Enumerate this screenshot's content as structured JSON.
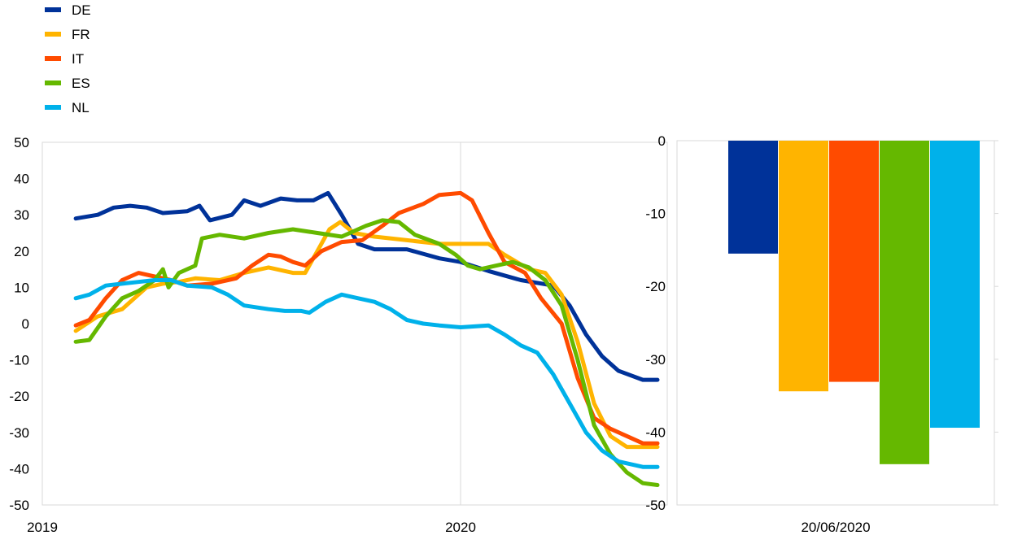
{
  "chart_data": [
    {
      "type": "line",
      "title": "",
      "xlabel": "",
      "ylabel": "",
      "x_unit": "months since Jan 2019",
      "x_ticks": [
        {
          "label": "2019",
          "x": 0
        },
        {
          "label": "2020",
          "x": 12
        }
      ],
      "xlim": [
        0,
        18.4
      ],
      "ylim": [
        -50,
        50
      ],
      "y_ticks": [
        50,
        40,
        30,
        20,
        10,
        0,
        -10,
        -20,
        -30,
        -40,
        -50
      ],
      "grid": "vertical at year start",
      "legend": {
        "placement": "top-left",
        "entries": [
          "DE",
          "FR",
          "IT",
          "ES",
          "NL"
        ]
      },
      "series": [
        {
          "name": "DE",
          "color": "#003299",
          "points": [
            [
              0.96,
              29
            ],
            [
              1.59,
              30
            ],
            [
              2.05,
              32
            ],
            [
              2.52,
              32.5
            ],
            [
              2.99,
              32
            ],
            [
              3.46,
              30.5
            ],
            [
              4.16,
              31
            ],
            [
              4.51,
              32.5
            ],
            [
              4.81,
              28.5
            ],
            [
              5.44,
              30
            ],
            [
              5.79,
              34
            ],
            [
              6.26,
              32.5
            ],
            [
              6.84,
              34.5
            ],
            [
              7.31,
              34
            ],
            [
              7.78,
              34
            ],
            [
              8.2,
              36
            ],
            [
              8.59,
              30
            ],
            [
              9.06,
              22
            ],
            [
              9.53,
              20.5
            ],
            [
              10.46,
              20.5
            ],
            [
              11.39,
              18
            ],
            [
              12.0,
              17
            ],
            [
              12.8,
              14.5
            ],
            [
              13.73,
              12
            ],
            [
              14.66,
              10.5
            ],
            [
              15.13,
              5
            ],
            [
              15.6,
              -3
            ],
            [
              16.06,
              -9
            ],
            [
              16.53,
              -13
            ],
            [
              17.23,
              -15.5
            ],
            [
              17.65,
              -15.5
            ]
          ]
        },
        {
          "name": "FR",
          "color": "#FFB400",
          "points": [
            [
              0.96,
              -2
            ],
            [
              1.59,
              2
            ],
            [
              2.29,
              4
            ],
            [
              2.99,
              10
            ],
            [
              3.46,
              11
            ],
            [
              3.92,
              11.5
            ],
            [
              4.39,
              12.5
            ],
            [
              5.09,
              12
            ],
            [
              5.79,
              14
            ],
            [
              6.49,
              15.5
            ],
            [
              7.19,
              14
            ],
            [
              7.54,
              14
            ],
            [
              7.89,
              20
            ],
            [
              8.24,
              26
            ],
            [
              8.55,
              28
            ],
            [
              8.94,
              25
            ],
            [
              9.53,
              24
            ],
            [
              10.46,
              23
            ],
            [
              11.39,
              22
            ],
            [
              12.0,
              22
            ],
            [
              12.8,
              22
            ],
            [
              13.26,
              19
            ],
            [
              13.96,
              15
            ],
            [
              14.43,
              14
            ],
            [
              14.9,
              8
            ],
            [
              15.36,
              -5
            ],
            [
              15.83,
              -22
            ],
            [
              16.3,
              -31
            ],
            [
              16.77,
              -34
            ],
            [
              17.23,
              -34
            ],
            [
              17.65,
              -34
            ]
          ]
        },
        {
          "name": "IT",
          "color": "#FF4B00",
          "points": [
            [
              0.96,
              -0.5
            ],
            [
              1.35,
              1
            ],
            [
              1.82,
              7
            ],
            [
              2.29,
              12
            ],
            [
              2.76,
              14
            ],
            [
              3.22,
              13
            ],
            [
              3.69,
              12
            ],
            [
              4.16,
              10.5
            ],
            [
              4.86,
              11
            ],
            [
              5.56,
              12.5
            ],
            [
              6.02,
              16
            ],
            [
              6.49,
              19
            ],
            [
              6.84,
              18.5
            ],
            [
              7.19,
              17
            ],
            [
              7.54,
              16
            ],
            [
              8.01,
              20
            ],
            [
              8.59,
              22.5
            ],
            [
              9.18,
              23
            ],
            [
              9.76,
              27
            ],
            [
              10.23,
              30.5
            ],
            [
              10.93,
              33
            ],
            [
              11.39,
              35.5
            ],
            [
              12.0,
              36
            ],
            [
              12.33,
              34
            ],
            [
              12.8,
              25
            ],
            [
              13.26,
              17
            ],
            [
              13.85,
              14
            ],
            [
              14.31,
              7
            ],
            [
              14.9,
              0
            ],
            [
              15.36,
              -15
            ],
            [
              15.83,
              -26
            ],
            [
              16.3,
              -29
            ],
            [
              16.77,
              -31
            ],
            [
              17.23,
              -33
            ],
            [
              17.65,
              -33
            ]
          ]
        },
        {
          "name": "ES",
          "color": "#65B800",
          "points": [
            [
              0.96,
              -5
            ],
            [
              1.35,
              -4.5
            ],
            [
              1.82,
              2
            ],
            [
              2.29,
              7
            ],
            [
              2.76,
              9
            ],
            [
              3.22,
              12
            ],
            [
              3.46,
              15
            ],
            [
              3.62,
              10
            ],
            [
              3.92,
              14
            ],
            [
              4.39,
              16
            ],
            [
              4.58,
              23.5
            ],
            [
              5.09,
              24.5
            ],
            [
              5.79,
              23.5
            ],
            [
              6.49,
              25
            ],
            [
              7.19,
              26
            ],
            [
              7.89,
              25
            ],
            [
              8.59,
              24
            ],
            [
              9.29,
              27
            ],
            [
              9.76,
              28.5
            ],
            [
              10.23,
              28
            ],
            [
              10.69,
              24.5
            ],
            [
              11.39,
              22
            ],
            [
              11.86,
              19
            ],
            [
              12.21,
              16
            ],
            [
              12.56,
              15
            ],
            [
              13.03,
              16
            ],
            [
              13.5,
              17
            ],
            [
              13.96,
              15.5
            ],
            [
              14.43,
              12
            ],
            [
              14.9,
              5
            ],
            [
              15.36,
              -10
            ],
            [
              15.83,
              -28
            ],
            [
              16.3,
              -36
            ],
            [
              16.77,
              -41
            ],
            [
              17.23,
              -44
            ],
            [
              17.65,
              -44.5
            ]
          ]
        },
        {
          "name": "NL",
          "color": "#00B1EA",
          "points": [
            [
              0.96,
              7
            ],
            [
              1.35,
              8
            ],
            [
              1.82,
              10.5
            ],
            [
              2.29,
              11
            ],
            [
              2.76,
              11.5
            ],
            [
              3.22,
              12
            ],
            [
              3.69,
              12
            ],
            [
              4.16,
              10.5
            ],
            [
              4.86,
              10
            ],
            [
              5.32,
              8
            ],
            [
              5.79,
              5
            ],
            [
              6.49,
              4
            ],
            [
              6.96,
              3.5
            ],
            [
              7.43,
              3.5
            ],
            [
              7.66,
              3
            ],
            [
              8.13,
              6
            ],
            [
              8.59,
              8
            ],
            [
              9.06,
              7
            ],
            [
              9.53,
              6
            ],
            [
              9.99,
              4
            ],
            [
              10.46,
              1
            ],
            [
              10.93,
              0
            ],
            [
              11.39,
              -0.5
            ],
            [
              12.0,
              -1
            ],
            [
              12.8,
              -0.5
            ],
            [
              13.26,
              -3
            ],
            [
              13.73,
              -6
            ],
            [
              14.2,
              -8
            ],
            [
              14.66,
              -14
            ],
            [
              15.13,
              -22
            ],
            [
              15.6,
              -30
            ],
            [
              16.06,
              -35
            ],
            [
              16.53,
              -38
            ],
            [
              17.23,
              -39.5
            ],
            [
              17.65,
              -39.5
            ]
          ]
        }
      ]
    },
    {
      "type": "bar",
      "title": "",
      "categories": [
        "DE",
        "FR",
        "IT",
        "ES",
        "NL"
      ],
      "colors": [
        "#003299",
        "#FFB400",
        "#FF4B00",
        "#65B800",
        "#00B1EA"
      ],
      "values": [
        -15.5,
        -34.4,
        -33.1,
        -44.4,
        -39.4
      ],
      "x_label": "20/06/2020",
      "ylim": [
        -50,
        0
      ],
      "y_ticks": [
        0,
        -10,
        -20,
        -30,
        -40,
        -50
      ]
    }
  ]
}
